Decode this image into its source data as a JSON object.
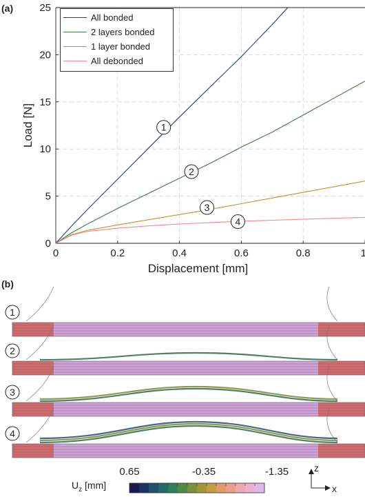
{
  "panel_a": {
    "label": "(a)"
  },
  "panel_b": {
    "label": "(b)",
    "rows": [
      "1",
      "2",
      "3",
      "4"
    ],
    "colorbar": {
      "quantity": "U",
      "subscript": "z",
      "unit": " [mm]",
      "tick_labels": [
        "0.65",
        "-0.35",
        "-1.35"
      ],
      "colors": [
        "#1a1a4e",
        "#1d3366",
        "#1f5070",
        "#236b6b",
        "#2e7f5a",
        "#4d8a45",
        "#78913a",
        "#a4953b",
        "#c89a44",
        "#e09a68",
        "#ec9c8a",
        "#f0a8b0",
        "#e9b0d0",
        "#dcb8e8"
      ]
    },
    "axes_labels": {
      "z": "z",
      "x": "x"
    },
    "colors": {
      "layer": "#cfa3d9",
      "edge_red": "#d05a4a",
      "stripe": "#6a4a5a",
      "outline": "#777777"
    }
  },
  "chart_data": {
    "type": "line",
    "xlabel": "Displacement [mm]",
    "ylabel": "Load [N]",
    "xlim": [
      0,
      1
    ],
    "ylim": [
      0,
      25
    ],
    "xticks": [
      0,
      0.2,
      0.4,
      0.6,
      0.8,
      1
    ],
    "xtick_labels": [
      "0",
      "0.2",
      "0.4",
      "0.6",
      "0.8",
      "1"
    ],
    "yticks": [
      0,
      5,
      10,
      15,
      20,
      25
    ],
    "ytick_labels": [
      "0",
      "5",
      "10",
      "15",
      "20",
      "25"
    ],
    "grid": true,
    "legend_position": "top-left",
    "series": [
      {
        "name": "All bonded",
        "color": "#1f3f77",
        "x": [
          0,
          0.05,
          0.1,
          0.2,
          0.3,
          0.4,
          0.5,
          0.6,
          0.7,
          0.75
        ],
        "y": [
          0,
          1.8,
          3.5,
          6.8,
          10.1,
          13.4,
          16.6,
          19.8,
          23.2,
          25
        ]
      },
      {
        "name": "2 layers bonded",
        "color": "#3a7a45",
        "x": [
          0,
          0.05,
          0.1,
          0.2,
          0.3,
          0.4,
          0.5,
          0.6,
          0.7,
          0.8,
          0.9,
          1.0
        ],
        "y": [
          0,
          1.1,
          2.0,
          3.7,
          5.3,
          6.9,
          8.5,
          10.2,
          11.8,
          13.6,
          15.4,
          17.2
        ]
      },
      {
        "name": "1 layer bonded",
        "color": "#c8902a",
        "x": [
          0,
          0.05,
          0.1,
          0.2,
          0.3,
          0.4,
          0.5,
          0.6,
          0.7,
          0.8,
          0.9,
          1.0
        ],
        "y": [
          0,
          0.9,
          1.35,
          1.95,
          2.5,
          3.05,
          3.6,
          4.2,
          4.8,
          5.4,
          6.0,
          6.6
        ]
      },
      {
        "name": "All debonded",
        "color": "#f08a8a",
        "x": [
          0,
          0.05,
          0.1,
          0.2,
          0.3,
          0.4,
          0.5,
          0.6,
          0.7,
          0.8,
          0.9,
          1.0
        ],
        "y": [
          0,
          0.85,
          1.25,
          1.6,
          1.85,
          2.05,
          2.2,
          2.35,
          2.45,
          2.55,
          2.65,
          2.75
        ]
      }
    ],
    "annotations": [
      {
        "text": "1",
        "x": 0.36,
        "y": 12.3
      },
      {
        "text": "2",
        "x": 0.45,
        "y": 7.6
      },
      {
        "text": "3",
        "x": 0.5,
        "y": 3.8
      },
      {
        "text": "4",
        "x": 0.6,
        "y": 2.3
      }
    ]
  }
}
